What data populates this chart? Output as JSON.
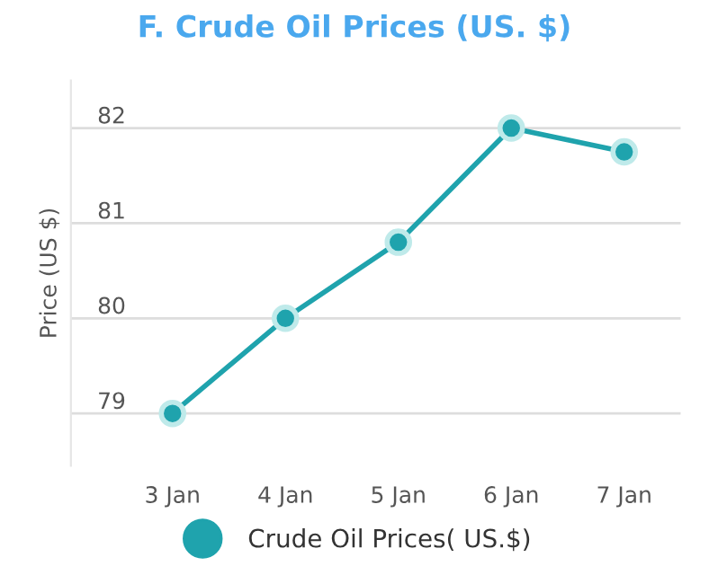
{
  "chart_data": {
    "type": "line",
    "title": "F. Crude Oil Prices (US. $)",
    "ylabel": "Price (US $)",
    "categories": [
      "3 Jan",
      "4 Jan",
      "5 Jan",
      "6 Jan",
      "7 Jan"
    ],
    "series": [
      {
        "name": "Crude Oil Prices( US.$)",
        "color": "#1fa3ad",
        "values": [
          79,
          80,
          80.8,
          82,
          81.75
        ]
      }
    ],
    "ylim": [
      78.45,
      82.5
    ],
    "yticks": [
      79,
      80,
      81,
      82
    ],
    "grid": "y",
    "legend": "bottom",
    "marker": "circle",
    "line_style": "solid"
  }
}
